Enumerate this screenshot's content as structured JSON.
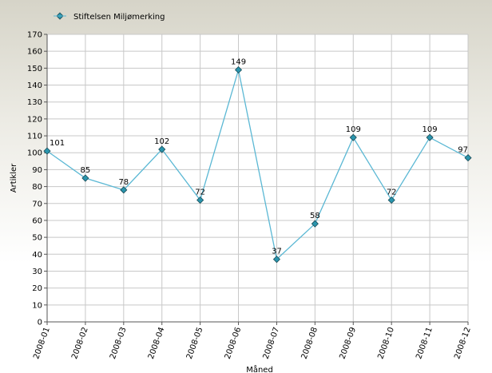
{
  "chart_data": {
    "type": "line",
    "xlabel": "Måned",
    "ylabel": "Artikler",
    "categories": [
      "2008-01",
      "2008-02",
      "2008-03",
      "2008-04",
      "2008-05",
      "2008-06",
      "2008-07",
      "2008-08",
      "2008-09",
      "2008-10",
      "2008-11",
      "2008-12"
    ],
    "series": [
      {
        "name": "Stiftelsen Miljømerking",
        "color": "#5bb8d4",
        "marker_color": "#2a95ad",
        "values": [
          101,
          85,
          78,
          102,
          72,
          149,
          37,
          58,
          109,
          72,
          109,
          97
        ]
      }
    ],
    "ylim": [
      0,
      170
    ],
    "yticks": [
      0,
      10,
      20,
      30,
      40,
      50,
      60,
      70,
      80,
      90,
      100,
      110,
      120,
      130,
      140,
      150,
      160,
      170
    ],
    "grid": true,
    "legend": "top-left"
  }
}
